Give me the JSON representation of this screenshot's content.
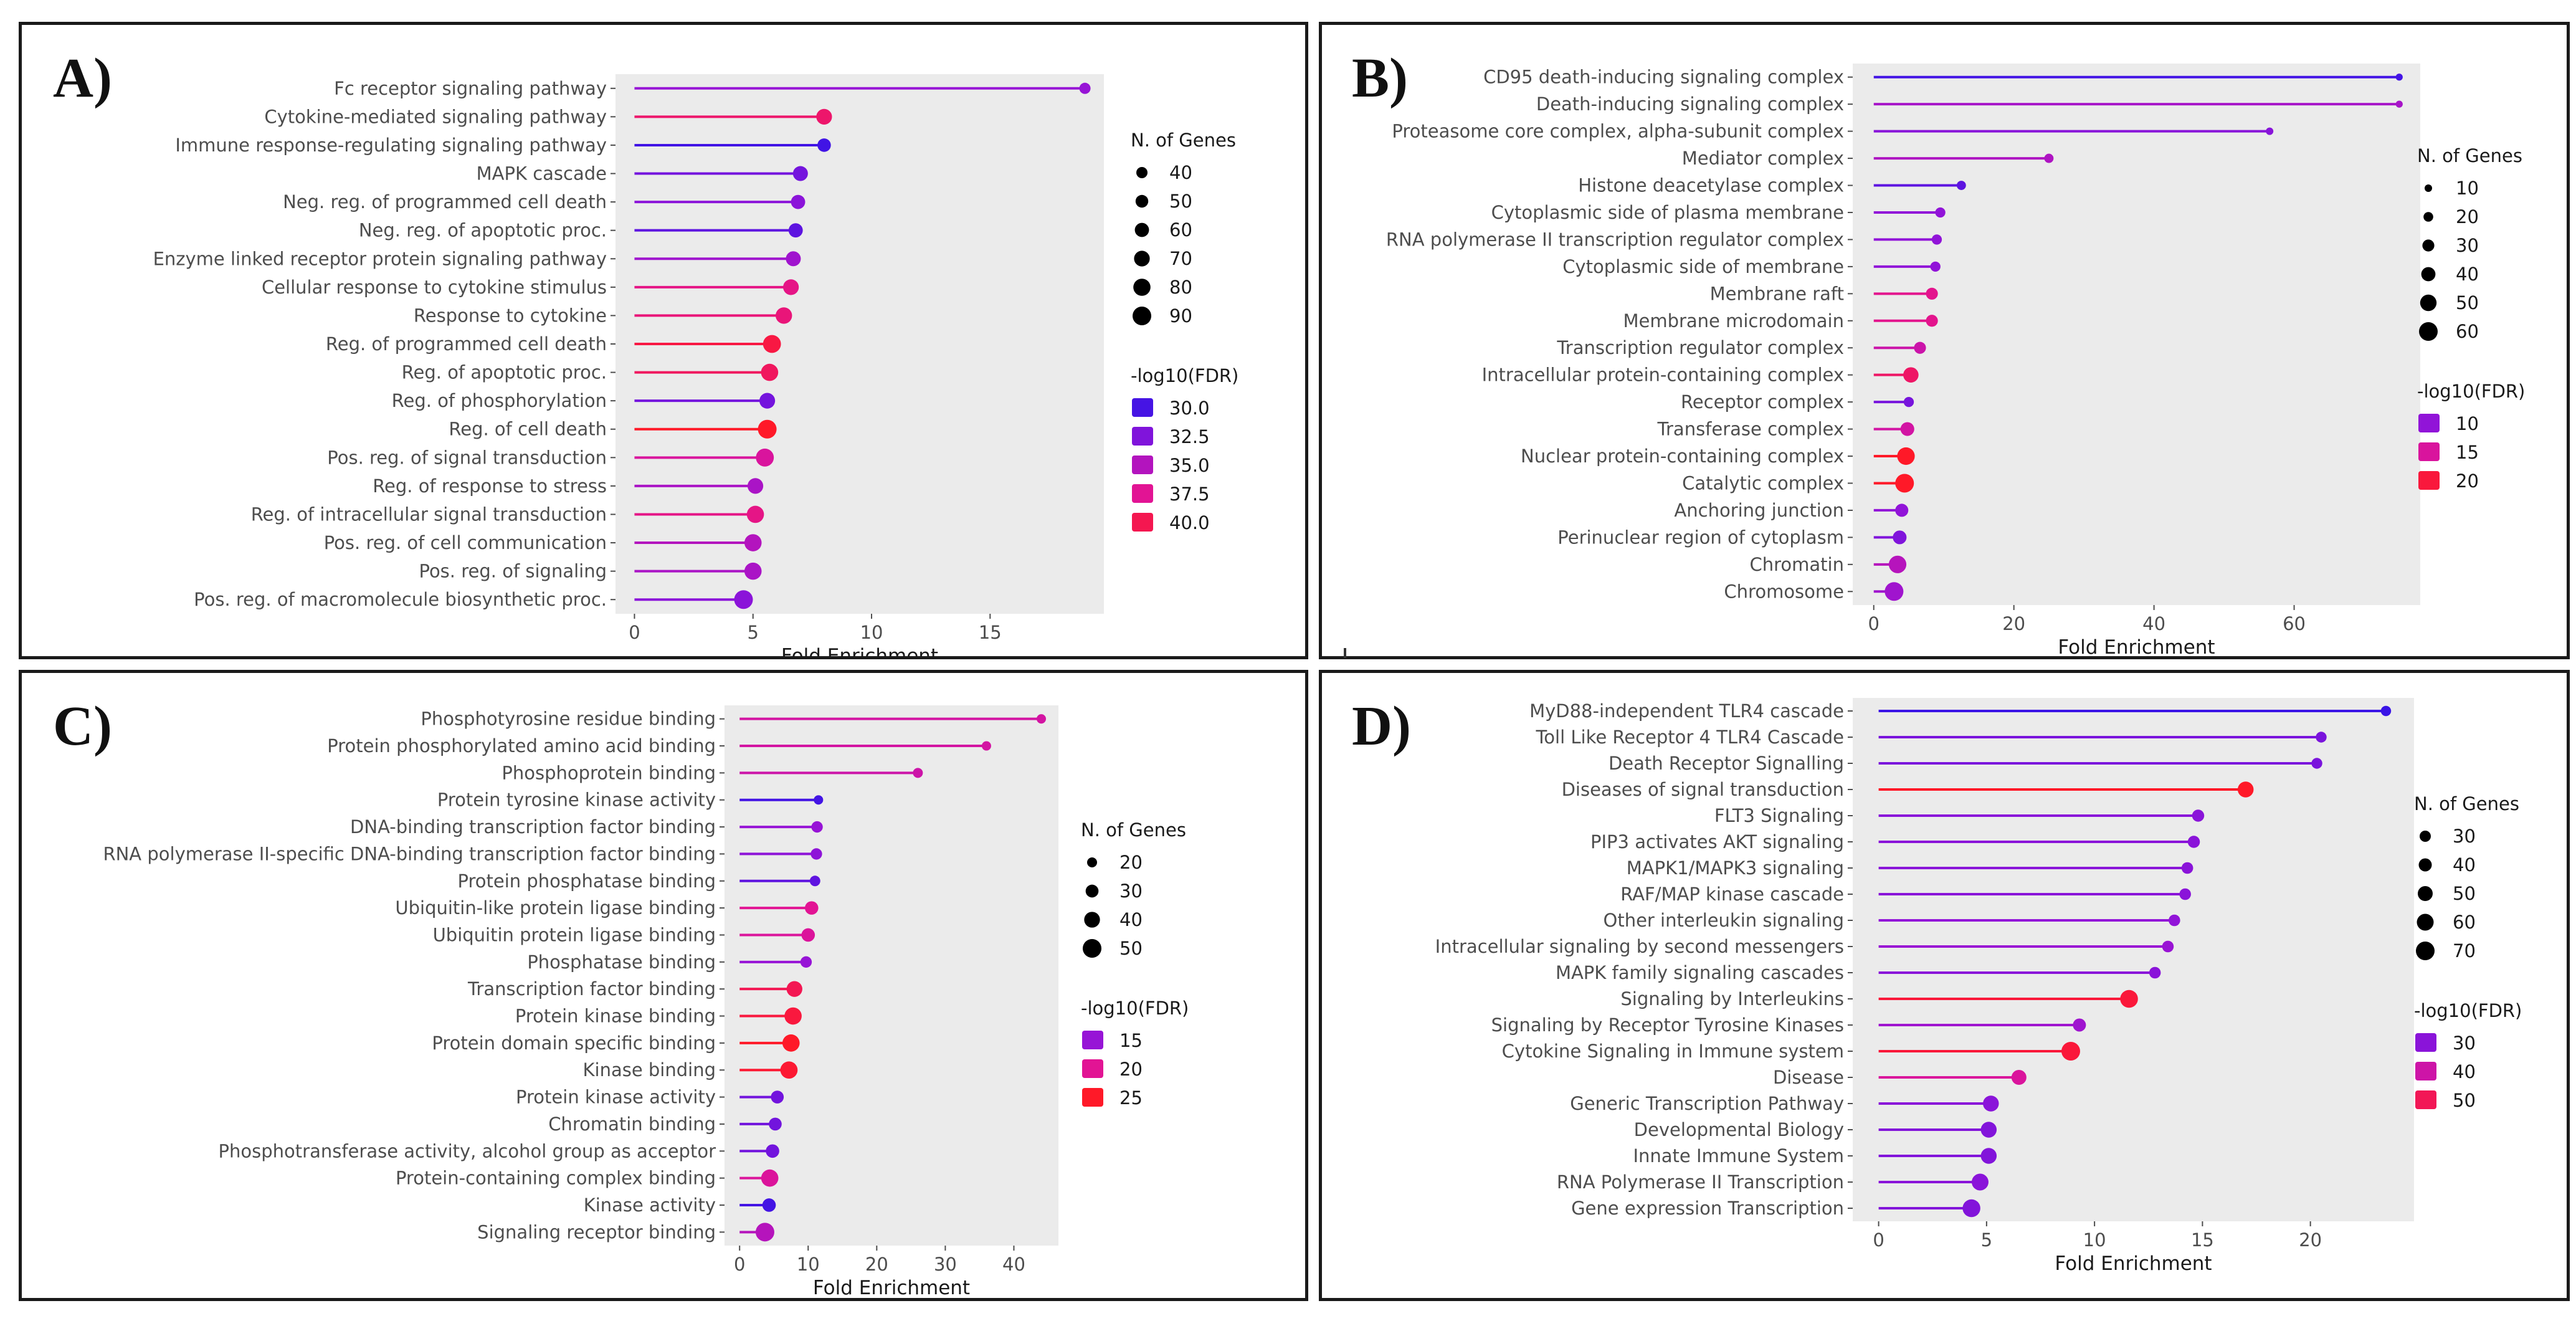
{
  "chart_data": [
    {
      "panel_label": "A)",
      "type": "lollipop",
      "xlabel": "Fold Enrichment",
      "xlim": [
        -0.8,
        19.8
      ],
      "xticks": [
        0,
        5,
        10,
        15
      ],
      "categories": [
        "Fc receptor signaling pathway",
        "Cytokine-mediated signaling pathway",
        "Immune response-regulating signaling pathway",
        "MAPK cascade",
        "Neg. reg. of programmed cell death",
        "Neg. reg. of apoptotic proc.",
        "Enzyme linked receptor protein signaling pathway",
        "Cellular response to cytokine stimulus",
        "Response to cytokine",
        "Reg. of programmed cell death",
        "Reg. of apoptotic proc.",
        "Reg. of phosphorylation",
        "Reg. of cell death",
        "Pos. reg. of signal transduction",
        "Reg. of response to stress",
        "Reg. of intracellular signal transduction",
        "Pos. reg. of cell communication",
        "Pos. reg. of signaling",
        "Pos. reg. of macromolecule biosynthetic proc."
      ],
      "fold_enrichment": [
        19.0,
        8.0,
        8.0,
        7.0,
        6.9,
        6.8,
        6.7,
        6.6,
        6.3,
        5.8,
        5.7,
        5.6,
        5.6,
        5.5,
        5.1,
        5.1,
        5.0,
        5.0,
        4.6
      ],
      "n_genes": [
        40,
        70,
        55,
        65,
        60,
        60,
        65,
        70,
        75,
        85,
        80,
        70,
        90,
        85,
        70,
        80,
        80,
        80,
        90
      ],
      "neg_log10_fdr": [
        33.5,
        39.0,
        29.8,
        32.0,
        33.0,
        31.0,
        34.0,
        38.0,
        38.5,
        40.5,
        39.5,
        32.0,
        41.5,
        37.0,
        34.5,
        38.0,
        35.0,
        34.5,
        33.0
      ],
      "size_legend": {
        "title": "N. of Genes",
        "values": [
          40,
          50,
          60,
          70,
          80,
          90
        ]
      },
      "color_legend": {
        "title": "-log10(FDR)",
        "values": [
          30.0,
          32.5,
          35.0,
          37.5,
          40.0
        ],
        "labels": [
          "30.0",
          "32.5",
          "35.0",
          "37.5",
          "40.0"
        ]
      }
    },
    {
      "panel_label": "B)",
      "type": "lollipop",
      "xlabel": "Fold Enrichment",
      "xlim": [
        -3,
        78
      ],
      "xticks": [
        0,
        20,
        40,
        60
      ],
      "categories": [
        "CD95 death-inducing signaling complex",
        "Death-inducing signaling complex",
        "Proteasome core complex, alpha-subunit complex",
        "Mediator complex",
        "Histone deacetylase complex",
        "Cytoplasmic side of plasma membrane",
        "RNA polymerase II transcription regulator complex",
        "Cytoplasmic side of membrane",
        "Membrane raft",
        "Membrane microdomain",
        "Transcription regulator complex",
        "Intracellular protein-containing complex",
        "Receptor complex",
        "Transferase complex",
        "Nuclear protein-containing complex",
        "Catalytic complex",
        "Anchoring junction",
        "Perinuclear region of cytoplasm",
        "Chromatin",
        "Chromosome"
      ],
      "fold_enrichment": [
        75.0,
        75.0,
        56.5,
        25.0,
        12.5,
        9.5,
        9.0,
        8.8,
        8.3,
        8.3,
        6.6,
        5.3,
        5.0,
        4.8,
        4.6,
        4.4,
        4.0,
        3.7,
        3.4,
        2.9
      ],
      "n_genes": [
        8,
        8,
        10,
        18,
        18,
        22,
        22,
        22,
        30,
        30,
        30,
        45,
        22,
        38,
        55,
        60,
        35,
        38,
        55,
        60
      ],
      "neg_log10_fdr": [
        5.5,
        11.5,
        9.5,
        12.0,
        7.0,
        10.0,
        10.0,
        10.0,
        16.0,
        16.0,
        14.0,
        18.0,
        8.5,
        14.5,
        21.0,
        21.0,
        10.0,
        9.0,
        12.5,
        11.0
      ],
      "size_legend": {
        "title": "N. of Genes",
        "values": [
          10,
          20,
          30,
          40,
          50,
          60
        ]
      },
      "color_legend": {
        "title": "-log10(FDR)",
        "values": [
          10,
          15,
          20
        ],
        "labels": [
          "10",
          "15",
          "20"
        ]
      }
    },
    {
      "panel_label": "C)",
      "type": "lollipop",
      "xlabel": "Fold Enrichment",
      "xlim": [
        -2.2,
        46.5
      ],
      "xticks": [
        0,
        10,
        20,
        30,
        40
      ],
      "categories": [
        "Phosphotyrosine residue binding",
        "Protein phosphorylated amino acid binding",
        "Phosphoprotein binding",
        "Protein tyrosine kinase activity",
        "DNA-binding transcription factor binding",
        "RNA polymerase II-specific DNA-binding transcription factor binding",
        "Protein phosphatase binding",
        "Ubiquitin-like protein ligase binding",
        "Ubiquitin protein ligase binding",
        "Phosphatase binding",
        "Transcription factor binding",
        "Protein kinase binding",
        "Protein domain specific binding",
        "Kinase binding",
        "Protein kinase activity",
        "Chromatin binding",
        "Phosphotransferase activity, alcohol group as acceptor",
        "Protein-containing complex binding",
        "Kinase activity",
        "Signaling receptor binding"
      ],
      "fold_enrichment": [
        44.0,
        36.0,
        26.0,
        11.5,
        11.3,
        11.2,
        11.0,
        10.5,
        10.0,
        9.7,
        8.0,
        7.8,
        7.5,
        7.2,
        5.5,
        5.2,
        4.8,
        4.4,
        4.3,
        3.7
      ],
      "n_genes": [
        18,
        18,
        20,
        18,
        25,
        25,
        22,
        32,
        32,
        25,
        40,
        45,
        45,
        45,
        30,
        30,
        32,
        45,
        32,
        50
      ],
      "neg_log10_fdr": [
        19.0,
        19.0,
        18.5,
        10.5,
        15.0,
        14.5,
        12.0,
        20.0,
        19.5,
        15.0,
        23.0,
        24.0,
        25.0,
        24.5,
        13.0,
        13.0,
        13.0,
        19.5,
        10.5,
        17.0
      ],
      "size_legend": {
        "title": "N. of Genes",
        "values": [
          20,
          30,
          40,
          50
        ]
      },
      "color_legend": {
        "title": "-log10(FDR)",
        "values": [
          15,
          20,
          25
        ],
        "labels": [
          "15",
          "20",
          "25"
        ]
      }
    },
    {
      "panel_label": "D)",
      "type": "lollipop",
      "xlabel": "Fold Enrichment",
      "xlim": [
        -1.2,
        24.8
      ],
      "xticks": [
        0,
        5,
        10,
        15,
        20
      ],
      "categories": [
        "MyD88-independent TLR4 cascade",
        "Toll Like Receptor 4 TLR4 Cascade",
        "Death Receptor Signalling",
        "Diseases of signal transduction",
        "FLT3 Signaling",
        "PIP3 activates AKT signaling",
        "MAPK1/MAPK3 signaling",
        "RAF/MAP kinase cascade",
        "Other interleukin signaling",
        "Intracellular signaling by second messengers",
        "MAPK family signaling cascades",
        "Signaling by Interleukins",
        "Signaling by Receptor Tyrosine Kinases",
        "Cytokine Signaling in Immune system",
        "Disease",
        "Generic Transcription Pathway",
        "Developmental Biology",
        "Innate Immune System",
        "RNA Polymerase II Transcription",
        "Gene expression Transcription"
      ],
      "fold_enrichment": [
        23.5,
        20.5,
        20.3,
        17.0,
        14.8,
        14.6,
        14.3,
        14.2,
        13.7,
        13.4,
        12.8,
        11.6,
        9.3,
        8.9,
        6.5,
        5.2,
        5.1,
        5.1,
        4.7,
        4.3
      ],
      "n_genes": [
        25,
        28,
        28,
        55,
        35,
        35,
        32,
        32,
        32,
        32,
        32,
        65,
        40,
        70,
        50,
        55,
        55,
        55,
        60,
        65
      ],
      "neg_log10_fdr": [
        20,
        28,
        28,
        56,
        30,
        30,
        30,
        30,
        31,
        32,
        30,
        53,
        33,
        53,
        42,
        30,
        29,
        29,
        30,
        29
      ],
      "size_legend": {
        "title": "N. of Genes",
        "values": [
          30,
          40,
          50,
          60,
          70
        ]
      },
      "color_legend": {
        "title": "-log10(FDR)",
        "values": [
          30,
          40,
          50
        ],
        "labels": [
          "30",
          "40",
          "50"
        ]
      }
    }
  ]
}
